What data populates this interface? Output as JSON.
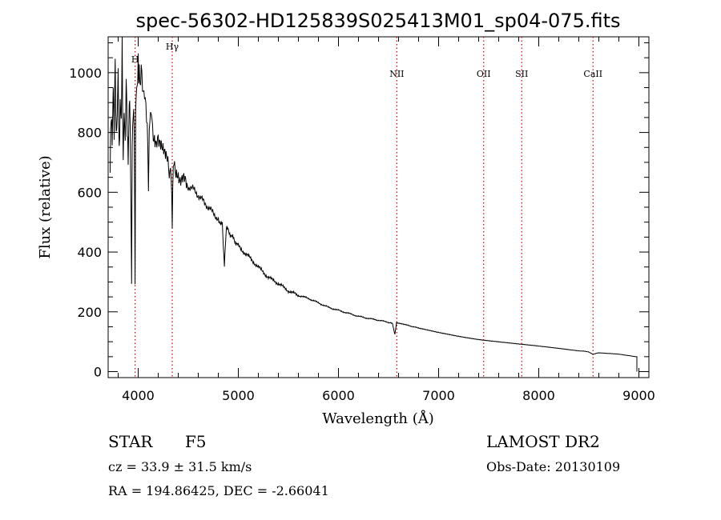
{
  "chart_data": {
    "type": "line",
    "title": "spec-56302-HD125839S025413M01_sp04-075.fits",
    "xlabel": "Wavelength (Å)",
    "ylabel": "Flux (relative)",
    "xlim": [
      3700,
      9100
    ],
    "ylim": [
      -20,
      1120
    ],
    "xticks": [
      4000,
      5000,
      6000,
      7000,
      8000,
      9000
    ],
    "yticks": [
      0,
      200,
      400,
      600,
      800,
      1000
    ],
    "grid": false,
    "line_color": "#000000",
    "marker_color": "#cc0000",
    "series": [
      {
        "x": [
          3720,
          3730,
          3740,
          3750,
          3760,
          3770,
          3780,
          3790,
          3800,
          3810,
          3820,
          3830,
          3840,
          3850,
          3860,
          3870,
          3880,
          3890,
          3900,
          3910,
          3920,
          3934,
          3940,
          3950,
          3960,
          3969,
          3975,
          3990,
          4000,
          4010,
          4020,
          4030,
          4050,
          4070,
          4090,
          4102,
          4110,
          4130,
          4150,
          4180,
          4200,
          4230,
          4260,
          4290,
          4310,
          4330,
          4340,
          4350,
          4370,
          4400,
          4450,
          4500,
          4550,
          4600,
          4650,
          4700,
          4750,
          4800,
          4840,
          4861,
          4880,
          4920,
          4960,
          5000,
          5100,
          5200,
          5300,
          5400,
          5500,
          5600,
          5700,
          5800,
          5900,
          6000,
          6100,
          6200,
          6300,
          6400,
          6500,
          6540,
          6563,
          6580,
          6700,
          6800,
          7000,
          7200,
          7400,
          7600,
          7800,
          8000,
          8200,
          8400,
          8500,
          8542,
          8600,
          8800,
          8980
        ],
        "y": [
          680,
          880,
          760,
          950,
          800,
          1040,
          780,
          860,
          1000,
          720,
          900,
          840,
          1080,
          700,
          880,
          760,
          980,
          820,
          700,
          900,
          860,
          280,
          750,
          880,
          820,
          300,
          900,
          960,
          1020,
          1000,
          960,
          990,
          950,
          900,
          850,
          620,
          840,
          860,
          800,
          780,
          760,
          740,
          720,
          700,
          680,
          640,
          500,
          690,
          680,
          660,
          640,
          620,
          610,
          590,
          570,
          550,
          530,
          510,
          490,
          350,
          480,
          460,
          440,
          420,
          385,
          350,
          315,
          295,
          270,
          255,
          245,
          230,
          215,
          205,
          195,
          185,
          178,
          172,
          165,
          160,
          125,
          162,
          155,
          145,
          130,
          118,
          108,
          100,
          92,
          85,
          78,
          70,
          66,
          58,
          63,
          58,
          50
        ]
      }
    ],
    "line_markers": [
      {
        "label": "H",
        "x": 3969
      },
      {
        "label": "Hγ",
        "x": 4340
      },
      {
        "label": "NII",
        "x": 6583
      },
      {
        "label": "OII",
        "x": 7450
      },
      {
        "label": "SII",
        "x": 7830
      },
      {
        "label": "CaII",
        "x": 8542
      }
    ]
  },
  "info": {
    "object_class": "STAR",
    "subclass": "F5",
    "survey": "LAMOST DR2",
    "cz_text": "cz = 33.9 ± 31.5 km/s",
    "obs_date_text": "Obs-Date: 20130109",
    "radec_text": "RA = 194.86425, DEC =  -2.66041"
  }
}
